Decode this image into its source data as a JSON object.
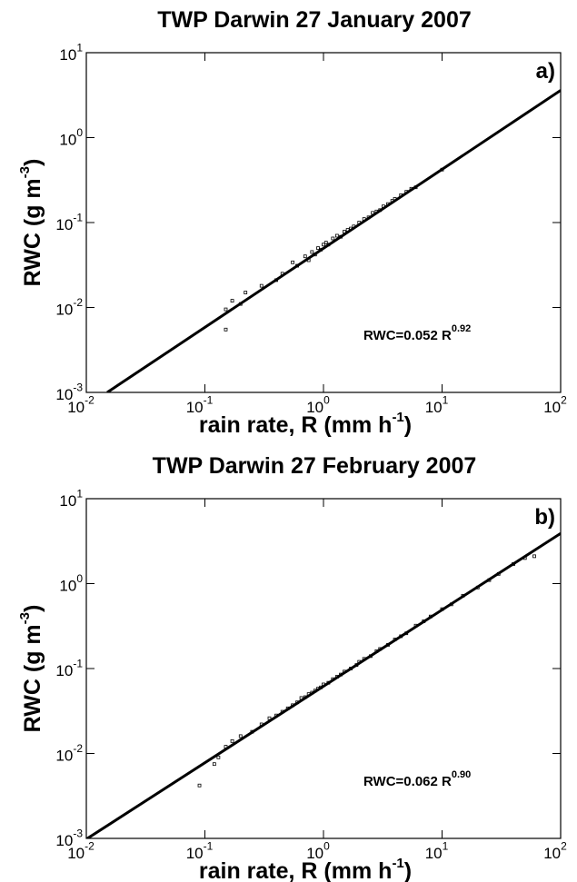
{
  "chart_data": [
    {
      "type": "scatter",
      "title": "TWP Darwin 27 January 2007",
      "panel_label": "a)",
      "xlabel": [
        "rain rate, R (mm h",
        "-1",
        ")"
      ],
      "ylabel": [
        "RWC (g m",
        "-3",
        ")"
      ],
      "annotation": [
        "RWC=0.052 R",
        "0.92"
      ],
      "xscale": "log",
      "yscale": "log",
      "xlim": [
        0.01,
        100
      ],
      "ylim": [
        0.001,
        10
      ],
      "xticks": [
        {
          "value": 0.01,
          "label": [
            "10",
            "-2"
          ]
        },
        {
          "value": 0.1,
          "label": [
            "10",
            "-1"
          ]
        },
        {
          "value": 1,
          "label": [
            "10",
            "0"
          ]
        },
        {
          "value": 10,
          "label": [
            "10",
            "1"
          ]
        },
        {
          "value": 100,
          "label": [
            "10",
            "2"
          ]
        }
      ],
      "yticks": [
        {
          "value": 0.001,
          "label": [
            "10",
            "-3"
          ]
        },
        {
          "value": 0.01,
          "label": [
            "10",
            "-2"
          ]
        },
        {
          "value": 0.1,
          "label": [
            "10",
            "-1"
          ]
        },
        {
          "value": 1,
          "label": [
            "10",
            "0"
          ]
        },
        {
          "value": 10,
          "label": [
            "10",
            "1"
          ]
        }
      ],
      "series": [
        {
          "type": "scatter",
          "color": "#000000",
          "x": [
            0.15,
            0.15,
            0.17,
            0.2,
            0.22,
            0.3,
            0.4,
            0.45,
            0.55,
            0.6,
            0.7,
            0.75,
            0.8,
            0.85,
            0.9,
            0.95,
            1.0,
            1.05,
            1.1,
            1.2,
            1.3,
            1.4,
            1.5,
            1.6,
            1.7,
            1.8,
            2.0,
            2.2,
            2.4,
            2.6,
            2.8,
            3.0,
            3.2,
            3.5,
            3.8,
            4.0,
            4.5,
            5.0,
            5.5,
            6.0,
            10.0
          ],
          "values": [
            0.0055,
            0.0095,
            0.012,
            0.011,
            0.015,
            0.018,
            0.021,
            0.025,
            0.034,
            0.031,
            0.04,
            0.036,
            0.045,
            0.042,
            0.05,
            0.048,
            0.055,
            0.058,
            0.055,
            0.065,
            0.07,
            0.068,
            0.078,
            0.082,
            0.085,
            0.09,
            0.1,
            0.11,
            0.115,
            0.13,
            0.135,
            0.14,
            0.155,
            0.165,
            0.18,
            0.19,
            0.21,
            0.23,
            0.25,
            0.26,
            0.42
          ]
        },
        {
          "type": "line",
          "color": "#000000",
          "x": [
            0.015,
            100
          ],
          "values": [
            0.001,
            3.6
          ]
        }
      ]
    },
    {
      "type": "scatter",
      "title": "TWP Darwin 27 February 2007",
      "panel_label": "b)",
      "xlabel": [
        "rain rate, R (mm h",
        "-1",
        ")"
      ],
      "ylabel": [
        "RWC (g m",
        "-3",
        ")"
      ],
      "annotation": [
        "RWC=0.062 R",
        "0.90"
      ],
      "xscale": "log",
      "yscale": "log",
      "xlim": [
        0.01,
        100
      ],
      "ylim": [
        0.001,
        10
      ],
      "xticks": [
        {
          "value": 0.01,
          "label": [
            "10",
            "-2"
          ]
        },
        {
          "value": 0.1,
          "label": [
            "10",
            "-1"
          ]
        },
        {
          "value": 1,
          "label": [
            "10",
            "0"
          ]
        },
        {
          "value": 10,
          "label": [
            "10",
            "1"
          ]
        },
        {
          "value": 100,
          "label": [
            "10",
            "2"
          ]
        }
      ],
      "yticks": [
        {
          "value": 0.001,
          "label": [
            "10",
            "-3"
          ]
        },
        {
          "value": 0.01,
          "label": [
            "10",
            "-2"
          ]
        },
        {
          "value": 0.1,
          "label": [
            "10",
            "-1"
          ]
        },
        {
          "value": 1,
          "label": [
            "10",
            "0"
          ]
        },
        {
          "value": 10,
          "label": [
            "10",
            "1"
          ]
        }
      ],
      "series": [
        {
          "type": "scatter",
          "color": "#000000",
          "x": [
            0.09,
            0.12,
            0.13,
            0.15,
            0.17,
            0.2,
            0.25,
            0.3,
            0.35,
            0.4,
            0.45,
            0.5,
            0.55,
            0.6,
            0.65,
            0.7,
            0.75,
            0.8,
            0.85,
            0.9,
            0.95,
            1.0,
            1.1,
            1.2,
            1.3,
            1.4,
            1.5,
            1.7,
            1.9,
            2.0,
            2.2,
            2.5,
            2.8,
            3.0,
            3.5,
            4.0,
            4.5,
            5.0,
            6.0,
            7.0,
            8.0,
            10,
            12,
            15,
            20,
            25,
            30,
            40,
            50,
            60
          ],
          "values": [
            0.0042,
            0.0075,
            0.009,
            0.012,
            0.014,
            0.016,
            0.018,
            0.022,
            0.026,
            0.028,
            0.031,
            0.034,
            0.037,
            0.04,
            0.045,
            0.046,
            0.05,
            0.052,
            0.055,
            0.058,
            0.06,
            0.065,
            0.068,
            0.075,
            0.08,
            0.085,
            0.092,
            0.1,
            0.11,
            0.12,
            0.13,
            0.14,
            0.16,
            0.17,
            0.19,
            0.22,
            0.24,
            0.26,
            0.32,
            0.36,
            0.41,
            0.5,
            0.57,
            0.72,
            0.9,
            1.1,
            1.3,
            1.7,
            2.0,
            2.1
          ]
        },
        {
          "type": "line",
          "color": "#000000",
          "x": [
            0.01,
            100
          ],
          "values": [
            0.00098,
            3.9
          ]
        }
      ]
    }
  ]
}
